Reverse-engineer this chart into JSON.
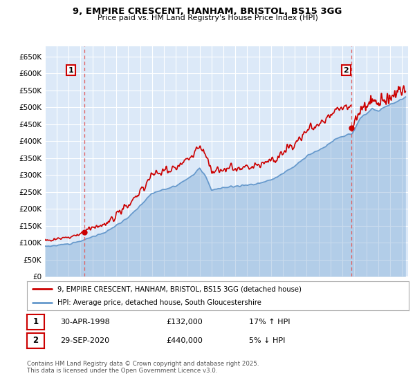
{
  "title": "9, EMPIRE CRESCENT, HANHAM, BRISTOL, BS15 3GG",
  "subtitle": "Price paid vs. HM Land Registry's House Price Index (HPI)",
  "legend_line1": "9, EMPIRE CRESCENT, HANHAM, BRISTOL, BS15 3GG (detached house)",
  "legend_line2": "HPI: Average price, detached house, South Gloucestershire",
  "annotation1": {
    "label": "1",
    "date_label": "30-APR-1998",
    "price_label": "£132,000",
    "hpi_label": "17% ↑ HPI",
    "year": 1998.33,
    "price": 132000
  },
  "annotation2": {
    "label": "2",
    "date_label": "29-SEP-2020",
    "price_label": "£440,000",
    "hpi_label": "5% ↓ HPI",
    "year": 2020.75,
    "price": 440000
  },
  "footer": "Contains HM Land Registry data © Crown copyright and database right 2025.\nThis data is licensed under the Open Government Licence v3.0.",
  "ylim": [
    0,
    680000
  ],
  "yticks": [
    0,
    50000,
    100000,
    150000,
    200000,
    250000,
    300000,
    350000,
    400000,
    450000,
    500000,
    550000,
    600000,
    650000
  ],
  "xlim_start": 1995,
  "xlim_end": 2025.5,
  "bg_color": "#dce9f8",
  "grid_color": "#ffffff",
  "property_color": "#cc0000",
  "hpi_color": "#6699cc",
  "hpi_fill_alpha": 0.35
}
